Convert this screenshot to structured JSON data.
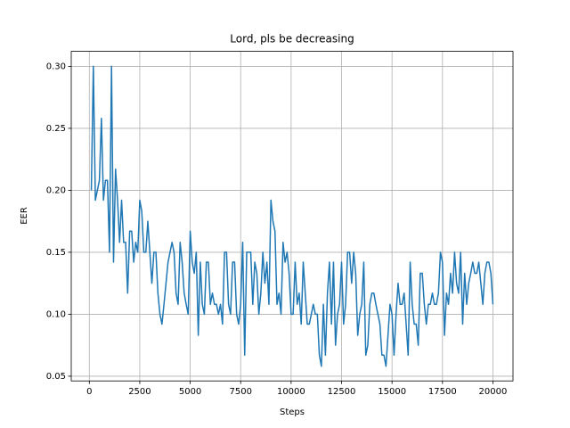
{
  "chart_data": {
    "type": "line",
    "title": "Lord, pls be decreasing",
    "x_label": "Steps",
    "y_label": "EER",
    "x": [
      100,
      200,
      300,
      400,
      500,
      600,
      700,
      800,
      900,
      1000,
      1100,
      1200,
      1300,
      1400,
      1500,
      1600,
      1700,
      1800,
      1900,
      2000,
      2100,
      2200,
      2300,
      2400,
      2500,
      2600,
      2700,
      2800,
      2900,
      3000,
      3100,
      3200,
      3300,
      3400,
      3500,
      3600,
      3700,
      3800,
      3900,
      4000,
      4100,
      4200,
      4300,
      4400,
      4500,
      4600,
      4700,
      4800,
      4900,
      5000,
      5100,
      5200,
      5300,
      5400,
      5500,
      5600,
      5700,
      5800,
      5900,
      6000,
      6100,
      6200,
      6300,
      6400,
      6500,
      6600,
      6700,
      6800,
      6900,
      7000,
      7100,
      7200,
      7300,
      7400,
      7500,
      7600,
      7700,
      7800,
      7900,
      8000,
      8100,
      8200,
      8300,
      8400,
      8500,
      8600,
      8700,
      8800,
      8900,
      9000,
      9100,
      9200,
      9300,
      9400,
      9500,
      9600,
      9700,
      9800,
      9900,
      10000,
      10100,
      10200,
      10300,
      10400,
      10500,
      10600,
      10700,
      10800,
      10900,
      11000,
      11100,
      11200,
      11300,
      11400,
      11500,
      11600,
      11700,
      11800,
      11900,
      12000,
      12100,
      12200,
      12300,
      12400,
      12500,
      12600,
      12700,
      12800,
      12900,
      13000,
      13100,
      13200,
      13300,
      13400,
      13500,
      13600,
      13700,
      13800,
      13900,
      14000,
      14100,
      14200,
      14300,
      14400,
      14500,
      14600,
      14700,
      14800,
      14900,
      15000,
      15100,
      15200,
      15300,
      15400,
      15500,
      15600,
      15700,
      15800,
      15900,
      16000,
      16100,
      16200,
      16300,
      16400,
      16500,
      16600,
      16700,
      16800,
      16900,
      17000,
      17100,
      17200,
      17300,
      17400,
      17500,
      17600,
      17700,
      17800,
      17900,
      18000,
      18100,
      18200,
      18300,
      18400,
      18500,
      18600,
      18700,
      18800,
      18900,
      19000,
      19100,
      19200,
      19300,
      19400,
      19500,
      19600,
      19700,
      19800,
      19900,
      20000
    ],
    "series": [
      {
        "name": "EER",
        "color": "#1f77b4",
        "values": [
          0.2,
          0.3,
          0.192,
          0.2,
          0.208,
          0.258,
          0.192,
          0.208,
          0.208,
          0.15,
          0.3,
          0.142,
          0.217,
          0.192,
          0.158,
          0.192,
          0.158,
          0.158,
          0.117,
          0.167,
          0.167,
          0.142,
          0.158,
          0.15,
          0.192,
          0.183,
          0.15,
          0.15,
          0.175,
          0.15,
          0.125,
          0.15,
          0.15,
          0.117,
          0.1,
          0.092,
          0.108,
          0.125,
          0.142,
          0.15,
          0.158,
          0.15,
          0.117,
          0.108,
          0.158,
          0.142,
          0.117,
          0.108,
          0.1,
          0.167,
          0.142,
          0.133,
          0.15,
          0.083,
          0.142,
          0.108,
          0.1,
          0.142,
          0.142,
          0.108,
          0.117,
          0.108,
          0.108,
          0.1,
          0.108,
          0.092,
          0.15,
          0.15,
          0.108,
          0.1,
          0.142,
          0.142,
          0.1,
          0.092,
          0.108,
          0.158,
          0.067,
          0.15,
          0.15,
          0.15,
          0.108,
          0.142,
          0.133,
          0.1,
          0.117,
          0.15,
          0.125,
          0.142,
          0.108,
          0.192,
          0.175,
          0.167,
          0.108,
          0.117,
          0.1,
          0.158,
          0.142,
          0.15,
          0.133,
          0.1,
          0.1,
          0.142,
          0.108,
          0.117,
          0.092,
          0.142,
          0.117,
          0.092,
          0.092,
          0.1,
          0.108,
          0.1,
          0.1,
          0.067,
          0.058,
          0.108,
          0.067,
          0.117,
          0.142,
          0.092,
          0.142,
          0.075,
          0.1,
          0.108,
          0.142,
          0.092,
          0.108,
          0.15,
          0.15,
          0.125,
          0.15,
          0.133,
          0.083,
          0.1,
          0.108,
          0.142,
          0.067,
          0.075,
          0.108,
          0.117,
          0.117,
          0.108,
          0.1,
          0.092,
          0.067,
          0.067,
          0.058,
          0.083,
          0.108,
          0.1,
          0.067,
          0.1,
          0.125,
          0.108,
          0.108,
          0.117,
          0.092,
          0.067,
          0.142,
          0.108,
          0.092,
          0.092,
          0.075,
          0.133,
          0.133,
          0.108,
          0.092,
          0.108,
          0.108,
          0.117,
          0.108,
          0.108,
          0.117,
          0.15,
          0.142,
          0.083,
          0.117,
          0.108,
          0.133,
          0.117,
          0.15,
          0.125,
          0.117,
          0.15,
          0.092,
          0.133,
          0.108,
          0.125,
          0.133,
          0.142,
          0.133,
          0.133,
          0.142,
          0.125,
          0.108,
          0.133,
          0.142,
          0.142,
          0.133,
          0.108
        ]
      }
    ],
    "xlim": [
      -895,
      20995
    ],
    "ylim": [
      0.0462,
      0.3121
    ],
    "xticks": [
      0,
      2500,
      5000,
      7500,
      10000,
      12500,
      15000,
      17500,
      20000
    ],
    "yticks": [
      0.05,
      {
        "value": 0.1,
        "label": "0.10"
      },
      0.15,
      {
        "value": 0.2,
        "label": "0.20"
      },
      0.25,
      {
        "value": 0.3,
        "label": "0.30"
      }
    ],
    "grid": true
  }
}
